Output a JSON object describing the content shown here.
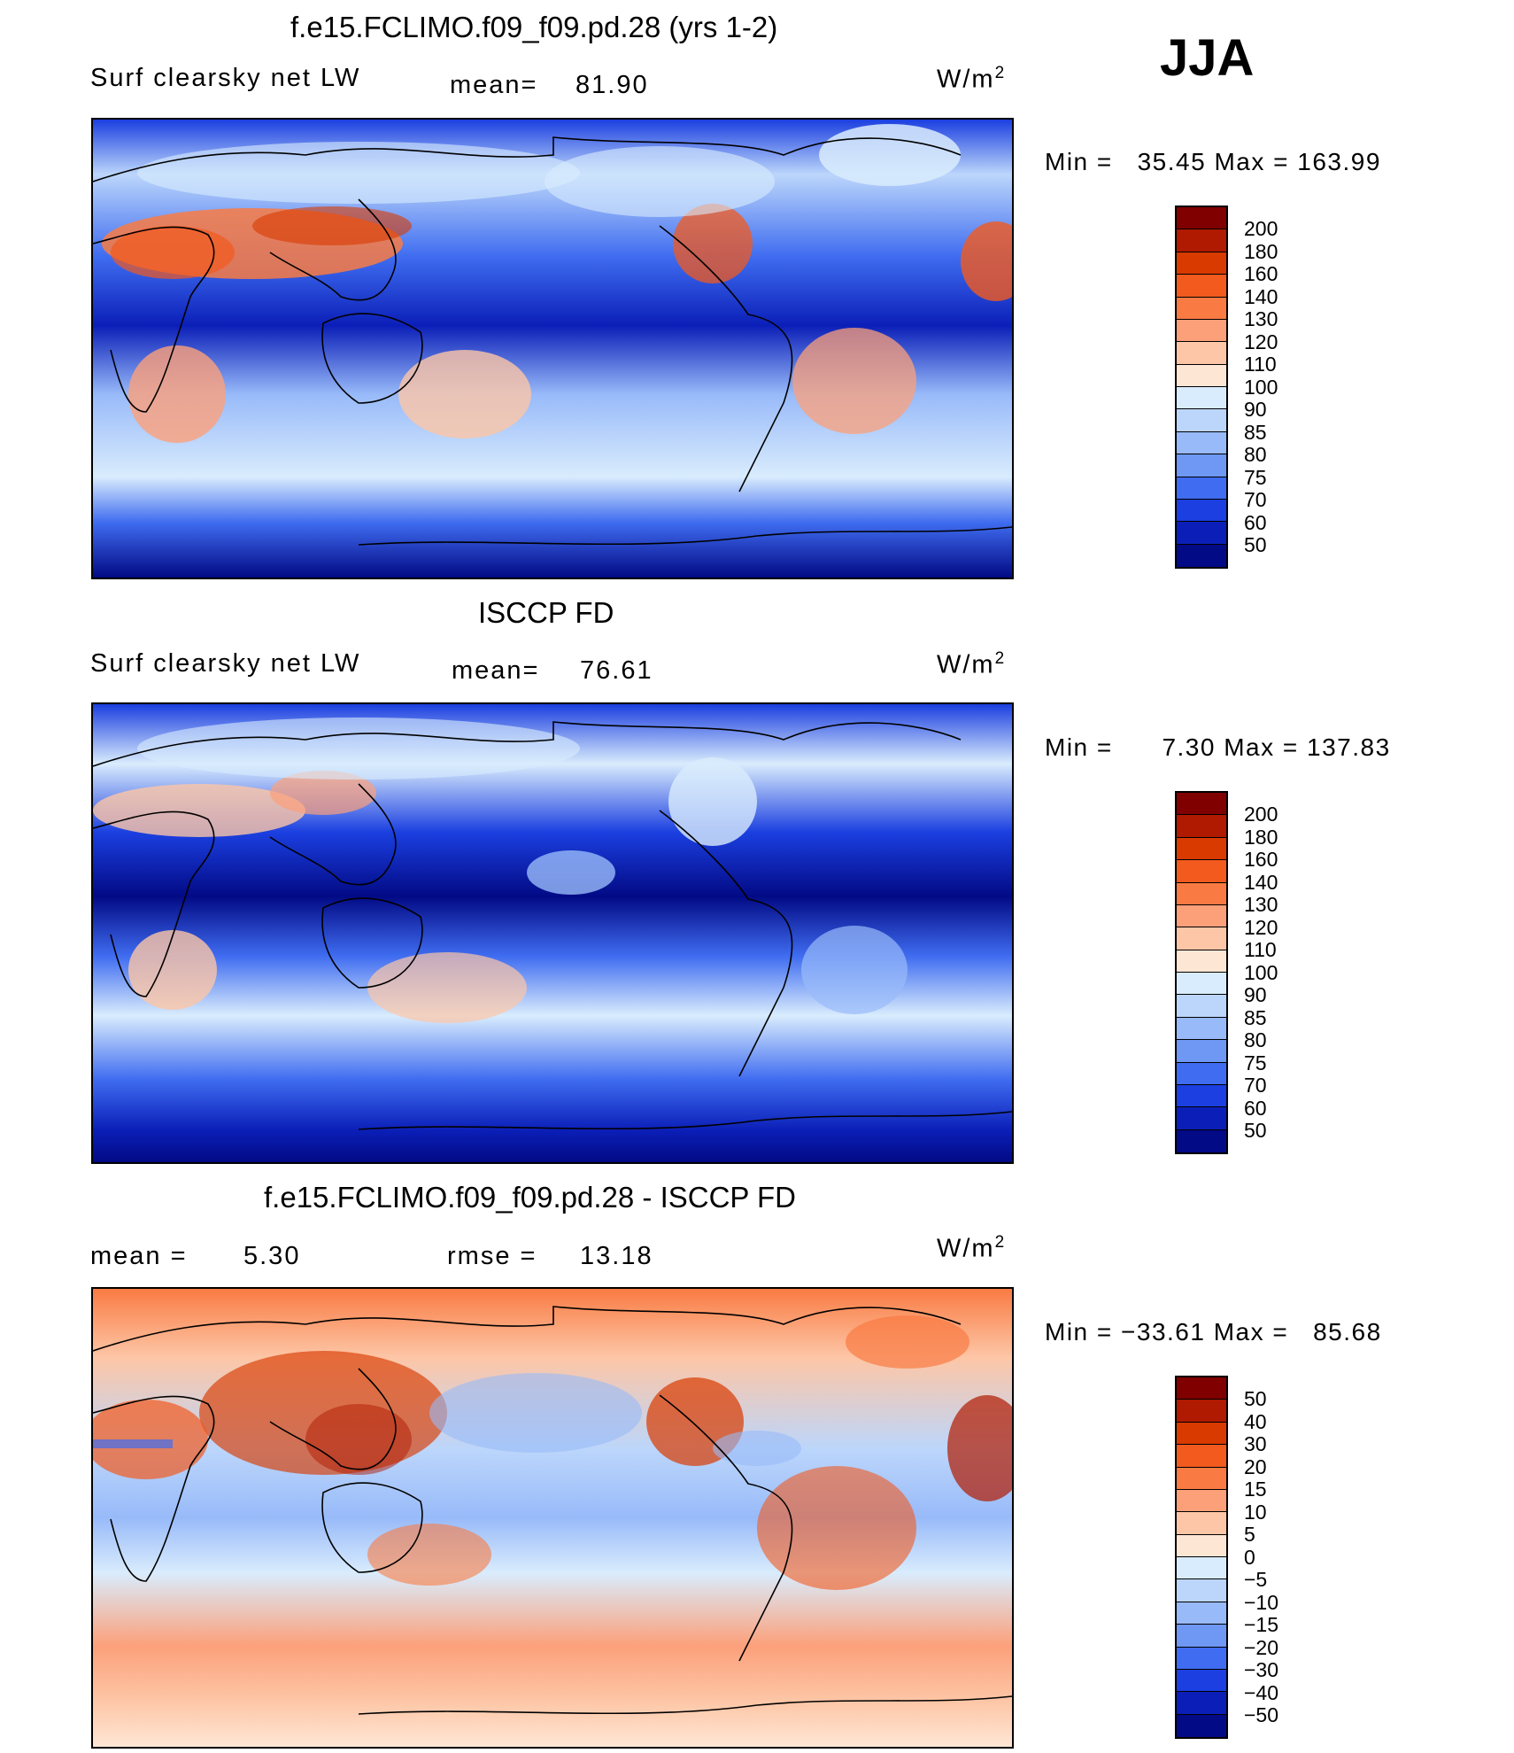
{
  "season": "JJA",
  "units": "W/m",
  "units_sup": "2",
  "panels": [
    {
      "title": "f.e15.FCLIMO.f09_f09.pd.28 (yrs 1-2)",
      "left_label": "Surf clearsky net LW",
      "stat_label": "mean=",
      "stat_value": "81.90",
      "min_label": "Min =",
      "min_value": "35.45",
      "max_label": "Max =",
      "max_value": "163.99",
      "colorbar_labels": [
        "200",
        "180",
        "160",
        "140",
        "130",
        "120",
        "110",
        "100",
        "90",
        "85",
        "80",
        "75",
        "70",
        "60",
        "50"
      ],
      "colorbar_colors": [
        "#800000",
        "#b01a00",
        "#d93a00",
        "#f25a1e",
        "#f97b43",
        "#fca07a",
        "#fdc6a6",
        "#fee6d5",
        "#d9ecfd",
        "#bcd6fb",
        "#98baf9",
        "#6e98f4",
        "#3f6cf0",
        "#1b3fe0",
        "#0b1fb8",
        "#020a85"
      ]
    },
    {
      "title": "ISCCP FD",
      "left_label": "Surf clearsky net LW",
      "stat_label": "mean=",
      "stat_value": "76.61",
      "min_label": "Min =",
      "min_value": "7.30",
      "max_label": "Max =",
      "max_value": "137.83",
      "colorbar_labels": [
        "200",
        "180",
        "160",
        "140",
        "130",
        "120",
        "110",
        "100",
        "90",
        "85",
        "80",
        "75",
        "70",
        "60",
        "50"
      ],
      "colorbar_colors": [
        "#800000",
        "#b01a00",
        "#d93a00",
        "#f25a1e",
        "#f97b43",
        "#fca07a",
        "#fdc6a6",
        "#fee6d5",
        "#d9ecfd",
        "#bcd6fb",
        "#98baf9",
        "#6e98f4",
        "#3f6cf0",
        "#1b3fe0",
        "#0b1fb8",
        "#020a85"
      ]
    },
    {
      "title": "f.e15.FCLIMO.f09_f09.pd.28 - ISCCP FD",
      "left_label": "mean =",
      "left_value": "5.30",
      "stat_label": "rmse =",
      "stat_value": "13.18",
      "min_label": "Min =",
      "min_value": "−33.61",
      "max_label": "Max =",
      "max_value": "85.68",
      "colorbar_labels": [
        "50",
        "40",
        "30",
        "20",
        "15",
        "10",
        "5",
        "0",
        "−5",
        "−10",
        "−15",
        "−20",
        "−30",
        "−40",
        "−50"
      ],
      "colorbar_colors": [
        "#800000",
        "#b01a00",
        "#d93a00",
        "#f25a1e",
        "#f97b43",
        "#fca07a",
        "#fdc6a6",
        "#fee6d5",
        "#d9ecfd",
        "#bcd6fb",
        "#98baf9",
        "#6e98f4",
        "#3f6cf0",
        "#1b3fe0",
        "#0b1fb8",
        "#020a85"
      ]
    }
  ]
}
